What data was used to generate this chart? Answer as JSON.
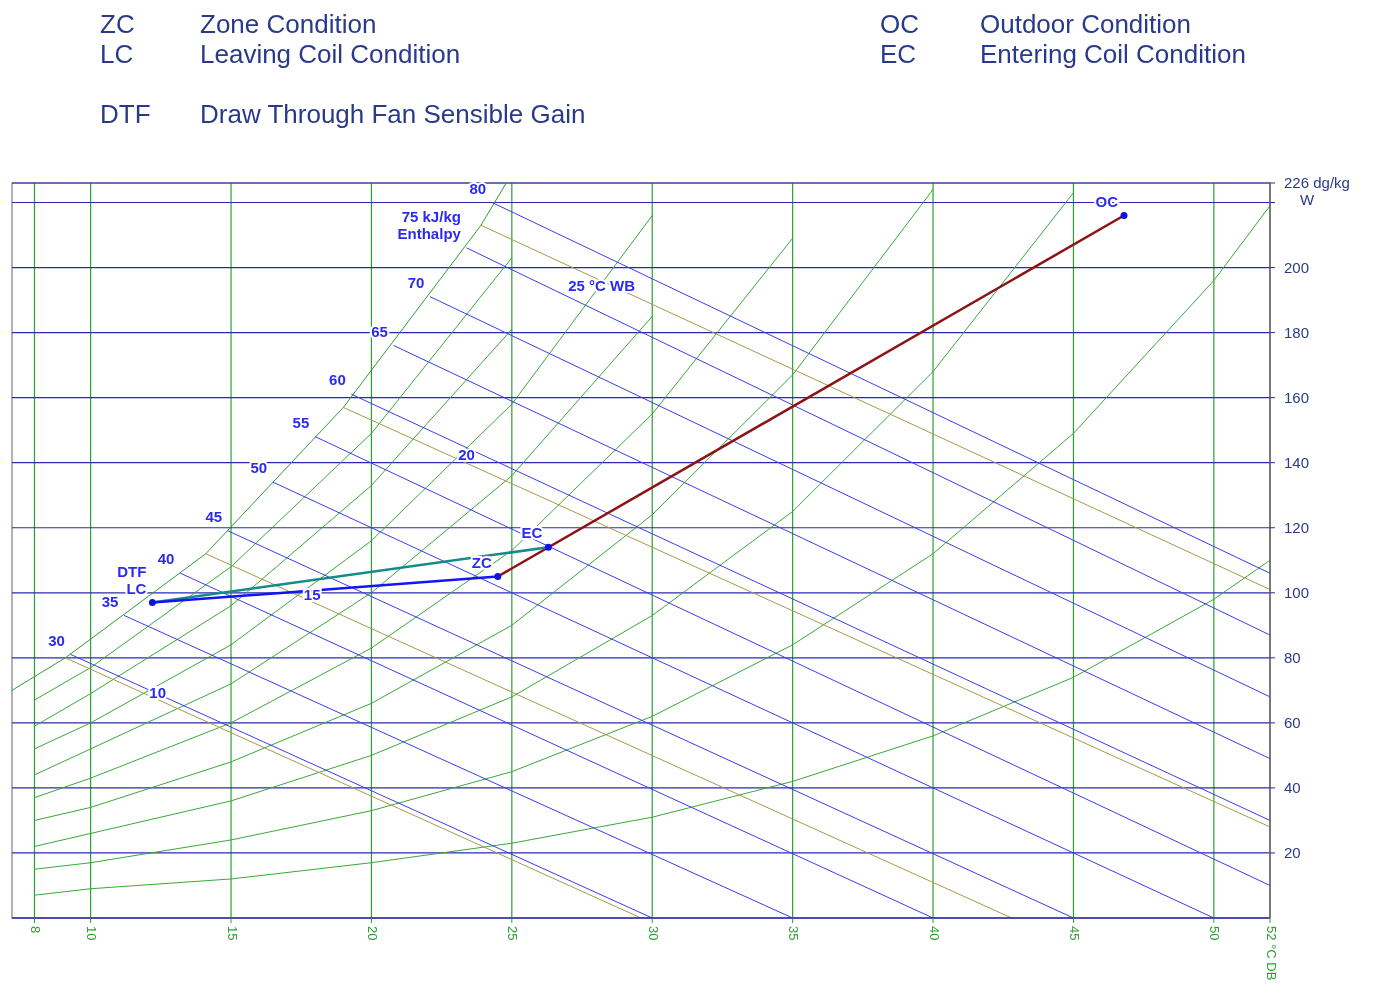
{
  "chart_data": {
    "type": "line",
    "ylabel": "W",
    "xlim": [
      7.2,
      52
    ],
    "ylim": [
      0,
      226
    ],
    "xticks": [
      8,
      10,
      15,
      20,
      25,
      30,
      35,
      40,
      45,
      50,
      {
        "value": 52,
        "label": "52 °C DB"
      }
    ],
    "yticks": [
      20,
      40,
      60,
      80,
      100,
      120,
      140,
      160,
      180,
      200,
      {
        "value": 220,
        "label": null
      },
      {
        "value": 226,
        "label": "226 dg/kg"
      }
    ],
    "grid": true,
    "marker": "none",
    "series": [
      {
        "color": "#2f9e2f",
        "x": [
          7.2,
          9.1,
          14.1,
          19,
          23.9,
          24.8
        ],
        "values": [
          70,
          80,
          112,
          157,
          213,
          226
        ]
      },
      {
        "color": "#3aa83a",
        "x": [
          8,
          10,
          15,
          20,
          25,
          30,
          35,
          40,
          45,
          50,
          52
        ],
        "values": [
          7,
          9,
          12,
          17,
          23,
          31,
          42,
          56,
          74,
          98,
          110
        ]
      },
      {
        "color": "#3aa83a",
        "x": [
          8,
          10,
          15,
          20,
          25,
          30,
          35,
          40,
          45,
          50,
          52
        ],
        "values": [
          15,
          17,
          24,
          33,
          45,
          62,
          84,
          112,
          149,
          196,
          219
        ]
      },
      {
        "color": "#3aa83a",
        "x": [
          8,
          10,
          15,
          20,
          25,
          30,
          35,
          40,
          45
        ],
        "values": [
          22,
          26,
          36,
          50,
          68,
          93,
          125,
          168,
          223
        ]
      },
      {
        "color": "#3aa83a",
        "x": [
          8,
          10,
          15,
          20,
          25,
          30,
          35,
          40
        ],
        "values": [
          30,
          34,
          48,
          66,
          90,
          124,
          167,
          224
        ]
      },
      {
        "color": "#3aa83a",
        "x": [
          8,
          10,
          15,
          20,
          25,
          30,
          35
        ],
        "values": [
          37,
          43,
          60,
          83,
          113,
          155,
          209
        ]
      },
      {
        "color": "#3aa83a",
        "x": [
          8,
          10,
          15,
          20,
          25,
          30
        ],
        "values": [
          44,
          52,
          72,
          100,
          136,
          185
        ]
      },
      {
        "color": "#3aa83a",
        "x": [
          8,
          10,
          15,
          20,
          25,
          30
        ],
        "values": [
          52,
          60,
          84,
          116,
          158,
          216
        ]
      },
      {
        "color": "#3aa83a",
        "x": [
          8,
          10,
          15,
          20,
          25
        ],
        "values": [
          59,
          69,
          96,
          133,
          181
        ]
      },
      {
        "color": "#3aa83a",
        "x": [
          8,
          10,
          15,
          20,
          25
        ],
        "values": [
          67,
          77,
          108,
          149,
          203
        ]
      },
      {
        "color": "#3c3cf0",
        "x": [
          9.3,
          30
        ],
        "values": [
          81,
          0
        ]
      },
      {
        "color": "#3c3cf0",
        "x": [
          11.2,
          35
        ],
        "values": [
          93,
          0
        ]
      },
      {
        "color": "#3c3cf0",
        "x": [
          13.2,
          40
        ],
        "values": [
          106,
          0
        ]
      },
      {
        "color": "#3c3cf0",
        "x": [
          14.9,
          45
        ],
        "values": [
          119,
          0
        ]
      },
      {
        "color": "#3c3cf0",
        "x": [
          16.5,
          50
        ],
        "values": [
          134,
          0
        ]
      },
      {
        "color": "#3c3cf0",
        "x": [
          18,
          52
        ],
        "values": [
          148,
          10
        ]
      },
      {
        "color": "#3c3cf0",
        "x": [
          19.3,
          52
        ],
        "values": [
          161,
          30
        ]
      },
      {
        "color": "#3c3cf0",
        "x": [
          20.8,
          52
        ],
        "values": [
          176,
          49
        ]
      },
      {
        "color": "#3c3cf0",
        "x": [
          22.1,
          52
        ],
        "values": [
          191,
          68
        ]
      },
      {
        "color": "#3c3cf0",
        "x": [
          23.4,
          52
        ],
        "values": [
          206,
          87
        ]
      },
      {
        "color": "#3c3cf0",
        "x": [
          24.3,
          52
        ],
        "values": [
          220,
          106
        ]
      },
      {
        "color": "#a8994a",
        "x": [
          9.1,
          29.6
        ],
        "values": [
          80,
          0
        ]
      },
      {
        "color": "#a8994a",
        "x": [
          14.1,
          42.8
        ],
        "values": [
          112,
          0
        ]
      },
      {
        "color": "#a8994a",
        "x": [
          19,
          52
        ],
        "values": [
          157,
          28
        ]
      },
      {
        "color": "#a8994a",
        "x": [
          23.9,
          52
        ],
        "values": [
          213,
          101
        ]
      },
      {
        "color": "#8b1414",
        "x": [
          24.5,
          46.8
        ],
        "values": [
          105,
          216
        ]
      },
      {
        "color": "#148a8a",
        "x": [
          26.3,
          12.2
        ],
        "values": [
          114,
          97
        ]
      },
      {
        "color": "#1414f0",
        "x": [
          24.5,
          12.2
        ],
        "values": [
          105,
          97
        ]
      },
      {
        "type": "scatter",
        "marker": "circle",
        "color": "#1010e0",
        "x": [
          46.8,
          26.3,
          24.5,
          12.2
        ],
        "values": [
          216,
          114,
          105,
          97
        ]
      }
    ],
    "annotations": [
      "ZC",
      "Zone Condition",
      "LC",
      "Leaving Coil Condition",
      "DTF",
      "Draw Through Fan Sensible Gain",
      "OC",
      "Outdoor Condition",
      "EC",
      "Entering Coil Condition",
      {
        "text": "80",
        "x": 24.3,
        "y": 220
      },
      {
        "text": "75 kJ/kg",
        "x": 23.4,
        "y": 206
      },
      {
        "text": "Enthalpy",
        "x": 23.4,
        "y": 206
      },
      {
        "text": "70",
        "x": 22.1,
        "y": 191
      },
      {
        "text": "65",
        "x": 20.8,
        "y": 176
      },
      {
        "text": "60",
        "x": 19.3,
        "y": 161
      },
      {
        "text": "55",
        "x": 18,
        "y": 148
      },
      {
        "text": "50",
        "x": 16.5,
        "y": 134
      },
      {
        "text": "45",
        "x": 14.9,
        "y": 119
      },
      {
        "text": "40",
        "x": 13.2,
        "y": 106
      },
      {
        "text": "35",
        "x": 11.2,
        "y": 93
      },
      {
        "text": "30",
        "x": 9.3,
        "y": 81
      },
      {
        "text": "25 °C WB",
        "x": 29.6,
        "y": 190
      },
      {
        "text": "20",
        "x": 23.9,
        "y": 138
      },
      {
        "text": "15",
        "x": 18.4,
        "y": 95
      },
      {
        "text": "10",
        "x": 12.9,
        "y": 65
      },
      {
        "text": "OC",
        "x": 46.8,
        "y": 216
      },
      {
        "text": "EC",
        "x": 26.3,
        "y": 114
      },
      {
        "text": "ZC",
        "x": 24.5,
        "y": 105
      },
      {
        "text": "DTF",
        "x": 12.2,
        "y": 97
      },
      {
        "text": "LC",
        "x": 12.2,
        "y": 97
      }
    ]
  }
}
